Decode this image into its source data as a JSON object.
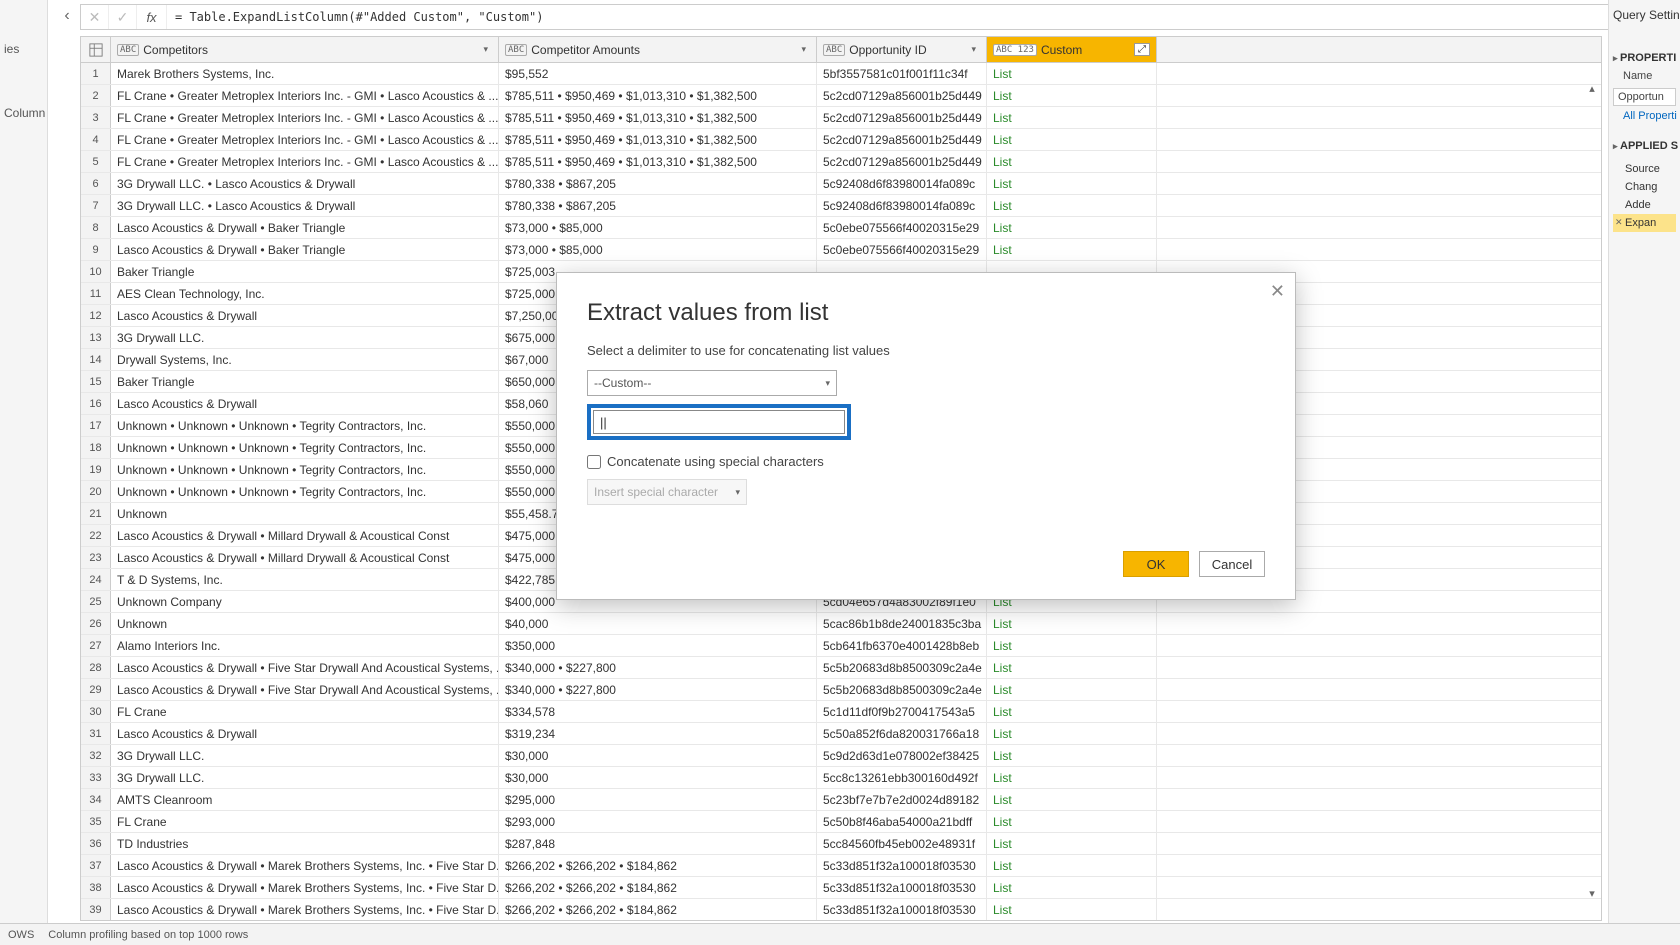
{
  "left_edge": {
    "label1": "ies",
    "label2": "Column"
  },
  "nav": {
    "back_glyph": "‹"
  },
  "formula": {
    "cancel_glyph": "✕",
    "accept_glyph": "✓",
    "fx": "fx",
    "text": "= Table.ExpandListColumn(#\"Added Custom\", \"Custom\")",
    "expand_glyph": "⋁"
  },
  "columns": {
    "competitors": {
      "type": "ABC",
      "name": "Competitors"
    },
    "amounts": {
      "type": "ABC",
      "name": "Competitor Amounts"
    },
    "opportunity": {
      "type": "ABC",
      "name": "Opportunity ID"
    },
    "custom": {
      "type": "ABC\n123",
      "name": "Custom",
      "expand_glyph": "↕"
    }
  },
  "rows": [
    {
      "n": 1,
      "comp": "Marek Brothers Systems, Inc.",
      "amt": "$95,552",
      "opp": "5bf3557581c01f001f11c34f",
      "cust": "List"
    },
    {
      "n": 2,
      "comp": "FL Crane • Greater Metroplex Interiors  Inc. - GMI • Lasco Acoustics & ...",
      "amt": "$785,511 • $950,469 • $1,013,310 • $1,382,500",
      "opp": "5c2cd07129a856001b25d449",
      "cust": "List"
    },
    {
      "n": 3,
      "comp": "FL Crane • Greater Metroplex Interiors  Inc. - GMI • Lasco Acoustics & ...",
      "amt": "$785,511 • $950,469 • $1,013,310 • $1,382,500",
      "opp": "5c2cd07129a856001b25d449",
      "cust": "List"
    },
    {
      "n": 4,
      "comp": "FL Crane • Greater Metroplex Interiors  Inc. - GMI • Lasco Acoustics & ...",
      "amt": "$785,511 • $950,469 • $1,013,310 • $1,382,500",
      "opp": "5c2cd07129a856001b25d449",
      "cust": "List"
    },
    {
      "n": 5,
      "comp": "FL Crane • Greater Metroplex Interiors  Inc. - GMI • Lasco Acoustics & ...",
      "amt": "$785,511 • $950,469 • $1,013,310 • $1,382,500",
      "opp": "5c2cd07129a856001b25d449",
      "cust": "List"
    },
    {
      "n": 6,
      "comp": "3G Drywall LLC. • Lasco Acoustics & Drywall",
      "amt": "$780,338 • $867,205",
      "opp": "5c92408d6f83980014fa089c",
      "cust": "List"
    },
    {
      "n": 7,
      "comp": "3G Drywall LLC. • Lasco Acoustics & Drywall",
      "amt": "$780,338 • $867,205",
      "opp": "5c92408d6f83980014fa089c",
      "cust": "List"
    },
    {
      "n": 8,
      "comp": "Lasco Acoustics & Drywall • Baker Triangle",
      "amt": "$73,000 • $85,000",
      "opp": "5c0ebe075566f40020315e29",
      "cust": "List"
    },
    {
      "n": 9,
      "comp": "Lasco Acoustics & Drywall • Baker Triangle",
      "amt": "$73,000 • $85,000",
      "opp": "5c0ebe075566f40020315e29",
      "cust": "List"
    },
    {
      "n": 10,
      "comp": "Baker Triangle",
      "amt": "$725,003",
      "opp": "",
      "cust": ""
    },
    {
      "n": 11,
      "comp": "AES Clean Technology, Inc.",
      "amt": "$725,000",
      "opp": "",
      "cust": ""
    },
    {
      "n": 12,
      "comp": "Lasco Acoustics & Drywall",
      "amt": "$7,250,00",
      "opp": "",
      "cust": ""
    },
    {
      "n": 13,
      "comp": "3G Drywall LLC.",
      "amt": "$675,000",
      "opp": "",
      "cust": ""
    },
    {
      "n": 14,
      "comp": "Drywall Systems, Inc.",
      "amt": "$67,000",
      "opp": "",
      "cust": ""
    },
    {
      "n": 15,
      "comp": "Baker Triangle",
      "amt": "$650,000",
      "opp": "",
      "cust": ""
    },
    {
      "n": 16,
      "comp": "Lasco Acoustics & Drywall",
      "amt": "$58,060",
      "opp": "",
      "cust": ""
    },
    {
      "n": 17,
      "comp": "Unknown • Unknown • Unknown • Tegrity Contractors, Inc.",
      "amt": "$550,000",
      "opp": "",
      "cust": ""
    },
    {
      "n": 18,
      "comp": "Unknown • Unknown • Unknown • Tegrity Contractors, Inc.",
      "amt": "$550,000",
      "opp": "",
      "cust": ""
    },
    {
      "n": 19,
      "comp": "Unknown • Unknown • Unknown • Tegrity Contractors, Inc.",
      "amt": "$550,000",
      "opp": "",
      "cust": ""
    },
    {
      "n": 20,
      "comp": "Unknown • Unknown • Unknown • Tegrity Contractors, Inc.",
      "amt": "$550,000",
      "opp": "",
      "cust": ""
    },
    {
      "n": 21,
      "comp": "Unknown",
      "amt": "$55,458.7",
      "opp": "",
      "cust": ""
    },
    {
      "n": 22,
      "comp": "Lasco Acoustics & Drywall • Millard Drywall & Acoustical Const",
      "amt": "$475,000",
      "opp": "",
      "cust": ""
    },
    {
      "n": 23,
      "comp": "Lasco Acoustics & Drywall • Millard Drywall & Acoustical Const",
      "amt": "$475,000",
      "opp": "",
      "cust": ""
    },
    {
      "n": 24,
      "comp": "T & D Systems, Inc.",
      "amt": "$422,785",
      "opp": "",
      "cust": ""
    },
    {
      "n": 25,
      "comp": "Unknown Company",
      "amt": "$400,000",
      "opp": "5cd04e657d4a83002f89f1e0",
      "cust": "List"
    },
    {
      "n": 26,
      "comp": "Unknown",
      "amt": "$40,000",
      "opp": "5cac86b1b8de24001835c3ba",
      "cust": "List"
    },
    {
      "n": 27,
      "comp": "Alamo Interiors Inc.",
      "amt": "$350,000",
      "opp": "5cb641fb6370e4001428b8eb",
      "cust": "List"
    },
    {
      "n": 28,
      "comp": "Lasco Acoustics & Drywall • Five Star Drywall And Acoustical Systems, ...",
      "amt": "$340,000 • $227,800",
      "opp": "5c5b20683d8b8500309c2a4e",
      "cust": "List"
    },
    {
      "n": 29,
      "comp": "Lasco Acoustics & Drywall • Five Star Drywall And Acoustical Systems, ...",
      "amt": "$340,000 • $227,800",
      "opp": "5c5b20683d8b8500309c2a4e",
      "cust": "List"
    },
    {
      "n": 30,
      "comp": "FL Crane",
      "amt": "$334,578",
      "opp": "5c1d11df0f9b2700417543a5",
      "cust": "List"
    },
    {
      "n": 31,
      "comp": "Lasco Acoustics & Drywall",
      "amt": "$319,234",
      "opp": "5c50a852f6da820031766a18",
      "cust": "List"
    },
    {
      "n": 32,
      "comp": "3G Drywall LLC.",
      "amt": "$30,000",
      "opp": "5c9d2d63d1e078002ef38425",
      "cust": "List"
    },
    {
      "n": 33,
      "comp": "3G Drywall LLC.",
      "amt": "$30,000",
      "opp": "5cc8c13261ebb300160d492f",
      "cust": "List"
    },
    {
      "n": 34,
      "comp": "AMTS Cleanroom",
      "amt": "$295,000",
      "opp": "5c23bf7e7b7e2d0024d89182",
      "cust": "List"
    },
    {
      "n": 35,
      "comp": "FL Crane",
      "amt": "$293,000",
      "opp": "5c50b8f46aba54000a21bdff",
      "cust": "List"
    },
    {
      "n": 36,
      "comp": "TD Industries",
      "amt": "$287,848",
      "opp": "5cc84560fb45eb002e48931f",
      "cust": "List"
    },
    {
      "n": 37,
      "comp": "Lasco Acoustics & Drywall • Marek Brothers Systems, Inc. • Five Star D...",
      "amt": "$266,202 • $266,202 • $184,862",
      "opp": "5c33d851f32a100018f03530",
      "cust": "List"
    },
    {
      "n": 38,
      "comp": "Lasco Acoustics & Drywall • Marek Brothers Systems, Inc. • Five Star D...",
      "amt": "$266,202 • $266,202 • $184,862",
      "opp": "5c33d851f32a100018f03530",
      "cust": "List"
    },
    {
      "n": 39,
      "comp": "Lasco Acoustics & Drywall • Marek Brothers Systems, Inc. • Five Star D...",
      "amt": "$266,202 • $266,202 • $184,862",
      "opp": "5c33d851f32a100018f03530",
      "cust": "List"
    }
  ],
  "status": {
    "rows": "OWS",
    "profiling": "Column profiling based on top 1000 rows"
  },
  "right": {
    "title": "Query Settin",
    "properties": "PROPERTI",
    "name_lbl": "Name",
    "name_val": "Opportun",
    "all_props": "All Properti",
    "applied": "APPLIED S",
    "steps": [
      {
        "label": "Source",
        "active": false
      },
      {
        "label": "Chang",
        "active": false
      },
      {
        "label": "Adde",
        "active": false
      },
      {
        "label": "Expan",
        "active": true
      }
    ]
  },
  "dialog": {
    "title": "Extract values from list",
    "subtitle": "Select a delimiter to use for concatenating list values",
    "delimiter_select": "--Custom--",
    "input_value": "||",
    "concat_checkbox_label": "Concatenate using special characters",
    "insert_special_label": "Insert special character",
    "ok": "OK",
    "cancel": "Cancel",
    "close_glyph": "✕"
  }
}
